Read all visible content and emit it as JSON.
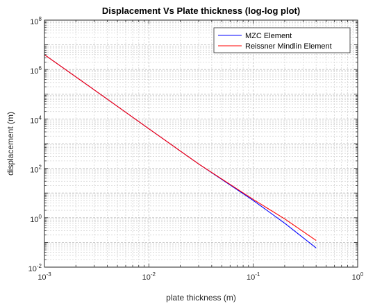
{
  "chart_data": {
    "type": "line",
    "title": "Displacement Vs Plate thickness (log-log plot)",
    "xlabel": "plate thickness (m)",
    "ylabel": "displacement (m)",
    "xscale": "log",
    "yscale": "log",
    "xlim": [
      0.001,
      1
    ],
    "ylim": [
      0.01,
      100000000
    ],
    "grid": "major and minor, dashed",
    "legend_position": "top-right",
    "x_ticks": [
      {
        "base": "10",
        "exp": "-3"
      },
      {
        "base": "10",
        "exp": "-2"
      },
      {
        "base": "10",
        "exp": "-1"
      },
      {
        "base": "10",
        "exp": "0"
      }
    ],
    "y_ticks": [
      {
        "base": "10",
        "exp": "-2"
      },
      {
        "base": "10",
        "exp": "0"
      },
      {
        "base": "10",
        "exp": "2"
      },
      {
        "base": "10",
        "exp": "4"
      },
      {
        "base": "10",
        "exp": "6"
      },
      {
        "base": "10",
        "exp": "8"
      }
    ],
    "series": [
      {
        "name": "MZC Element",
        "color": "#0000ff",
        "x": [
          0.001,
          0.003,
          0.01,
          0.03,
          0.1,
          0.2,
          0.4
        ],
        "y": [
          4000000,
          150000,
          4000,
          150,
          5,
          0.6,
          0.06
        ]
      },
      {
        "name": "Reissner Mindlin Element",
        "color": "#ff0000",
        "x": [
          0.001,
          0.003,
          0.01,
          0.03,
          0.1,
          0.2,
          0.4
        ],
        "y": [
          4000000,
          150000,
          4000,
          150,
          5.5,
          0.9,
          0.12
        ]
      }
    ]
  }
}
